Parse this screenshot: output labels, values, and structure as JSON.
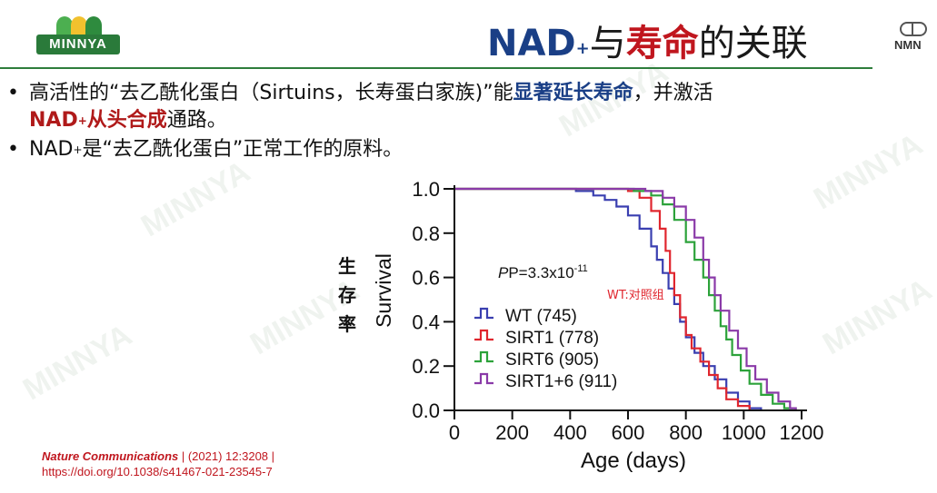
{
  "logo": {
    "text": "MINNYA"
  },
  "title": {
    "part1": "NAD",
    "sup": "+",
    "part2": "与",
    "part3": "寿命",
    "part4": "的关联"
  },
  "nmn_badge": {
    "text": "NMN"
  },
  "bullets": [
    {
      "a": "高活性的“去乙酰化蛋白（Sirtuins，长寿蛋白家族)”能",
      "b": "显著延长寿命",
      "c": "，并激活"
    },
    {
      "a": "NAD",
      "sup": "+",
      "b": "从头合成",
      "c": "通路。"
    },
    {
      "a": "NAD",
      "sup": "+",
      "b": "是“去乙酰化蛋白”正常工作的原料。"
    }
  ],
  "citation": {
    "journal": "Nature Communications",
    "rest": " | (2021) 12:3208 |",
    "doi": "https://doi.org/10.1038/s41467-021-23545-7"
  },
  "chart_data": {
    "type": "line",
    "xlabel": "Age (days)",
    "ylabel": "Survival",
    "ylabel_cn": [
      "生",
      "存",
      "率"
    ],
    "xlim": [
      0,
      1200
    ],
    "ylim": [
      0,
      1.0
    ],
    "xticks": [
      0,
      200,
      400,
      600,
      800,
      1000,
      1200
    ],
    "yticks": [
      0.0,
      0.2,
      0.4,
      0.6,
      0.8,
      1.0
    ],
    "annotation_p": "P=3.3x10",
    "annotation_p_exp": "-11",
    "annotation_note": "WT:对照组",
    "legend_position": "bottom-left",
    "series": [
      {
        "name": "WT",
        "n": "(745)",
        "color": "#3a3fb0",
        "points": [
          [
            0,
            1.0
          ],
          [
            250,
            1.0
          ],
          [
            420,
            0.99
          ],
          [
            480,
            0.97
          ],
          [
            520,
            0.95
          ],
          [
            560,
            0.92
          ],
          [
            600,
            0.88
          ],
          [
            640,
            0.82
          ],
          [
            680,
            0.74
          ],
          [
            700,
            0.68
          ],
          [
            720,
            0.62
          ],
          [
            740,
            0.55
          ],
          [
            760,
            0.48
          ],
          [
            780,
            0.4
          ],
          [
            800,
            0.33
          ],
          [
            830,
            0.26
          ],
          [
            860,
            0.2
          ],
          [
            900,
            0.14
          ],
          [
            940,
            0.08
          ],
          [
            980,
            0.04
          ],
          [
            1020,
            0.01
          ],
          [
            1060,
            0.0
          ]
        ]
      },
      {
        "name": "SIRT1",
        "n": "(778)",
        "color": "#e0262e",
        "points": [
          [
            0,
            1.0
          ],
          [
            560,
            1.0
          ],
          [
            600,
            0.99
          ],
          [
            640,
            0.96
          ],
          [
            680,
            0.9
          ],
          [
            710,
            0.82
          ],
          [
            730,
            0.72
          ],
          [
            745,
            0.62
          ],
          [
            760,
            0.52
          ],
          [
            780,
            0.42
          ],
          [
            800,
            0.34
          ],
          [
            820,
            0.28
          ],
          [
            850,
            0.22
          ],
          [
            880,
            0.16
          ],
          [
            910,
            0.1
          ],
          [
            940,
            0.05
          ],
          [
            980,
            0.02
          ],
          [
            1020,
            0.0
          ]
        ]
      },
      {
        "name": "SIRT6",
        "n": "(905)",
        "color": "#2ca23a",
        "points": [
          [
            0,
            1.0
          ],
          [
            560,
            1.0
          ],
          [
            620,
            0.99
          ],
          [
            680,
            0.97
          ],
          [
            720,
            0.93
          ],
          [
            760,
            0.86
          ],
          [
            800,
            0.76
          ],
          [
            830,
            0.68
          ],
          [
            860,
            0.6
          ],
          [
            880,
            0.52
          ],
          [
            900,
            0.45
          ],
          [
            920,
            0.38
          ],
          [
            940,
            0.32
          ],
          [
            960,
            0.25
          ],
          [
            990,
            0.18
          ],
          [
            1020,
            0.12
          ],
          [
            1060,
            0.07
          ],
          [
            1100,
            0.03
          ],
          [
            1140,
            0.01
          ],
          [
            1180,
            0.0
          ]
        ]
      },
      {
        "name": "SIRT1+6",
        "n": "(911)",
        "color": "#8a3aa8",
        "points": [
          [
            0,
            1.0
          ],
          [
            600,
            1.0
          ],
          [
            660,
            0.99
          ],
          [
            720,
            0.96
          ],
          [
            760,
            0.92
          ],
          [
            800,
            0.86
          ],
          [
            830,
            0.78
          ],
          [
            860,
            0.68
          ],
          [
            880,
            0.6
          ],
          [
            900,
            0.52
          ],
          [
            920,
            0.45
          ],
          [
            950,
            0.36
          ],
          [
            980,
            0.28
          ],
          [
            1010,
            0.2
          ],
          [
            1040,
            0.14
          ],
          [
            1080,
            0.08
          ],
          [
            1120,
            0.04
          ],
          [
            1160,
            0.01
          ],
          [
            1180,
            0.0
          ]
        ]
      }
    ]
  }
}
